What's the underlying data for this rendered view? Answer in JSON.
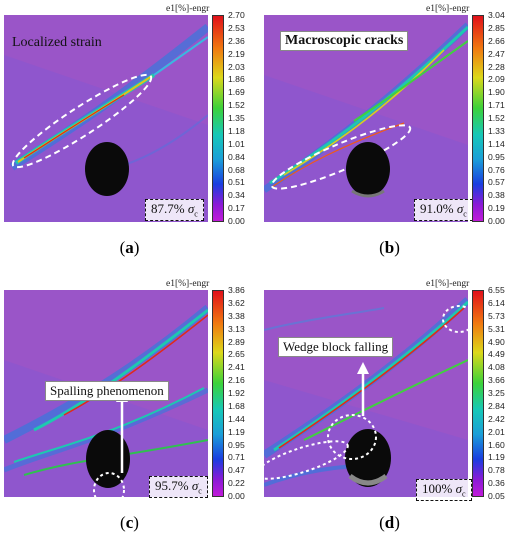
{
  "colorbar_title": "e1[%]-engr",
  "panels": [
    {
      "caption_open": "(",
      "caption_letter": "a",
      "caption_close": ")",
      "label": "Localized strain",
      "stress_value": "87.7%",
      "stress_symbol": "σ",
      "stress_sub": "c",
      "ticks": [
        "2.70",
        "2.53",
        "2.36",
        "2.19",
        "2.03",
        "1.86",
        "1.69",
        "1.52",
        "1.35",
        "1.18",
        "1.01",
        "0.84",
        "0.68",
        "0.51",
        "0.34",
        "0.17",
        "0.00"
      ]
    },
    {
      "caption_open": "(",
      "caption_letter": "b",
      "caption_close": ")",
      "label": "Macroscopic cracks",
      "stress_value": "91.0%",
      "stress_symbol": "σ",
      "stress_sub": "c",
      "ticks": [
        "3.04",
        "2.85",
        "2.66",
        "2.47",
        "2.28",
        "2.09",
        "1.90",
        "1.71",
        "1.52",
        "1.33",
        "1.14",
        "0.95",
        "0.76",
        "0.57",
        "0.38",
        "0.19",
        "0.00"
      ]
    },
    {
      "caption_open": "(",
      "caption_letter": "c",
      "caption_close": ")",
      "label": "Spalling phenomenon",
      "stress_value": "95.7%",
      "stress_symbol": "σ",
      "stress_sub": "c",
      "ticks": [
        "3.86",
        "3.62",
        "3.38",
        "3.13",
        "2.89",
        "2.65",
        "2.41",
        "2.16",
        "1.92",
        "1.68",
        "1.44",
        "1.19",
        "0.95",
        "0.71",
        "0.47",
        "0.22",
        "0.00"
      ]
    },
    {
      "caption_open": "(",
      "caption_letter": "d",
      "caption_close": ")",
      "label": "Wedge block falling",
      "stress_value": "100%",
      "stress_symbol": "σ",
      "stress_sub": "c",
      "ticks": [
        "6.55",
        "6.14",
        "5.73",
        "5.31",
        "4.90",
        "4.49",
        "4.08",
        "3.66",
        "3.25",
        "2.84",
        "2.42",
        "2.01",
        "1.60",
        "1.19",
        "0.78",
        "0.36",
        "0.05"
      ]
    }
  ]
}
